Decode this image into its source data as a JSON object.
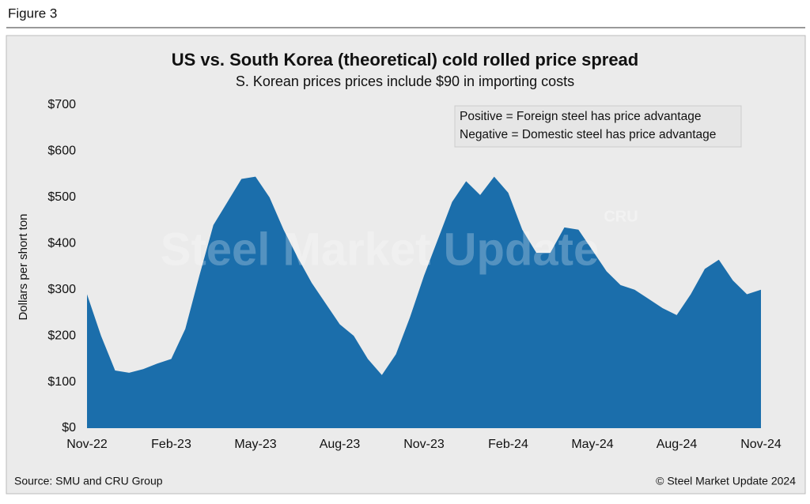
{
  "figure_label": "Figure 3",
  "source": "Source: SMU and CRU Group",
  "copyright": "© Steel Market Update 2024",
  "watermark": [
    "Steel Market Update",
    "CRU"
  ],
  "chart_data": {
    "type": "area",
    "title": "US vs. South Korea (theoretical) cold rolled price spread",
    "subtitle": "S. Korean prices prices include $90 in importing costs",
    "y_label": "Dollars per short ton",
    "annotations": [
      "Positive = Foreign steel has price advantage",
      "Negative = Domestic steel has price advantage"
    ],
    "color": "#1b6eab",
    "categories": [
      "Nov-22",
      null,
      null,
      null,
      null,
      null,
      "Feb-23",
      null,
      null,
      null,
      null,
      null,
      "May-23",
      null,
      null,
      null,
      null,
      null,
      "Aug-23",
      null,
      null,
      null,
      null,
      null,
      "Nov-23",
      null,
      null,
      null,
      null,
      null,
      "Feb-24",
      null,
      null,
      null,
      null,
      null,
      "May-24",
      null,
      null,
      null,
      null,
      null,
      "Aug-24",
      null,
      null,
      null,
      null,
      null,
      "Nov-24"
    ],
    "values": [
      290,
      200,
      125,
      120,
      128,
      140,
      150,
      215,
      330,
      440,
      490,
      540,
      545,
      500,
      430,
      370,
      315,
      270,
      225,
      200,
      150,
      115,
      160,
      240,
      330,
      410,
      490,
      535,
      505,
      545,
      510,
      430,
      380,
      380,
      435,
      430,
      385,
      340,
      310,
      300,
      280,
      260,
      245,
      290,
      345,
      365,
      320,
      290,
      300
    ],
    "ylim": [
      0,
      700
    ],
    "yticks": [
      {
        "value": 0,
        "label": "$0"
      },
      {
        "value": 100,
        "label": "$100"
      },
      {
        "value": 200,
        "label": "$200"
      },
      {
        "value": 300,
        "label": "$300"
      },
      {
        "value": 400,
        "label": "$400"
      },
      {
        "value": 500,
        "label": "$500"
      },
      {
        "value": 600,
        "label": "$600"
      },
      {
        "value": 700,
        "label": "$700"
      }
    ],
    "grid": false
  }
}
